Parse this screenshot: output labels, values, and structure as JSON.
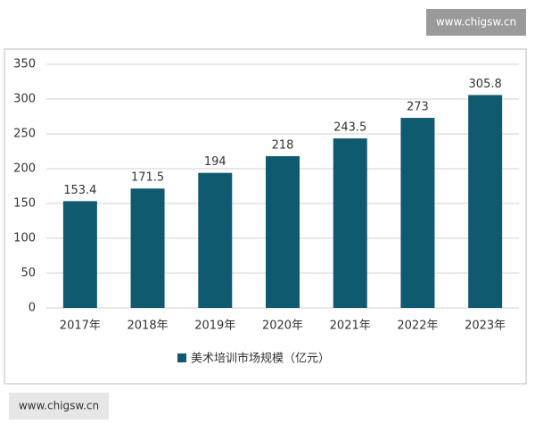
{
  "watermarks": [
    "www.chigsw.cn",
    "www.chigsw.cn"
  ],
  "chart_data": {
    "type": "bar",
    "categories": [
      "2017年",
      "2018年",
      "2019年",
      "2020年",
      "2021年",
      "2022年",
      "2023年"
    ],
    "series": [
      {
        "name": "美术培训市场规模（亿元）",
        "color": "#0f5a6e",
        "values": [
          153.4,
          171.5,
          194,
          218,
          243.5,
          273,
          305.8
        ]
      }
    ],
    "ylim": [
      0,
      350
    ],
    "yticks": [
      0,
      50,
      100,
      150,
      200,
      250,
      300,
      350
    ],
    "grid": true,
    "data_labels": true,
    "legend": "bottom"
  }
}
